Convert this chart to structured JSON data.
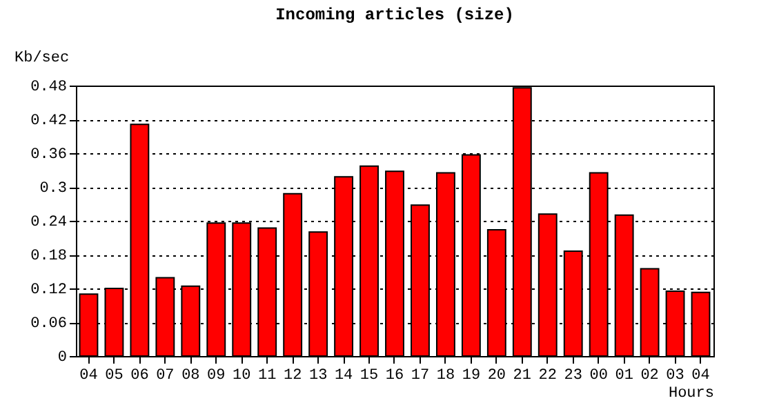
{
  "chart_data": {
    "type": "bar",
    "title": "Incoming articles (size)",
    "xlabel": "Hours",
    "ylabel": "Kb/sec",
    "categories": [
      "04",
      "05",
      "06",
      "07",
      "08",
      "09",
      "10",
      "11",
      "12",
      "13",
      "14",
      "15",
      "16",
      "17",
      "18",
      "19",
      "20",
      "21",
      "22",
      "23",
      "00",
      "01",
      "02",
      "03",
      "04"
    ],
    "values": [
      0.11,
      0.12,
      0.411,
      0.139,
      0.124,
      0.236,
      0.236,
      0.227,
      0.288,
      0.22,
      0.318,
      0.337,
      0.328,
      0.268,
      0.325,
      0.357,
      0.224,
      0.476,
      0.252,
      0.186,
      0.325,
      0.25,
      0.155,
      0.115,
      0.113
    ],
    "color": "#ff0000",
    "ylim": [
      0,
      0.48
    ],
    "yticks": [
      0,
      0.06,
      0.12,
      0.18,
      0.24,
      0.3,
      0.36,
      0.42,
      0.48
    ],
    "grid": "y"
  }
}
